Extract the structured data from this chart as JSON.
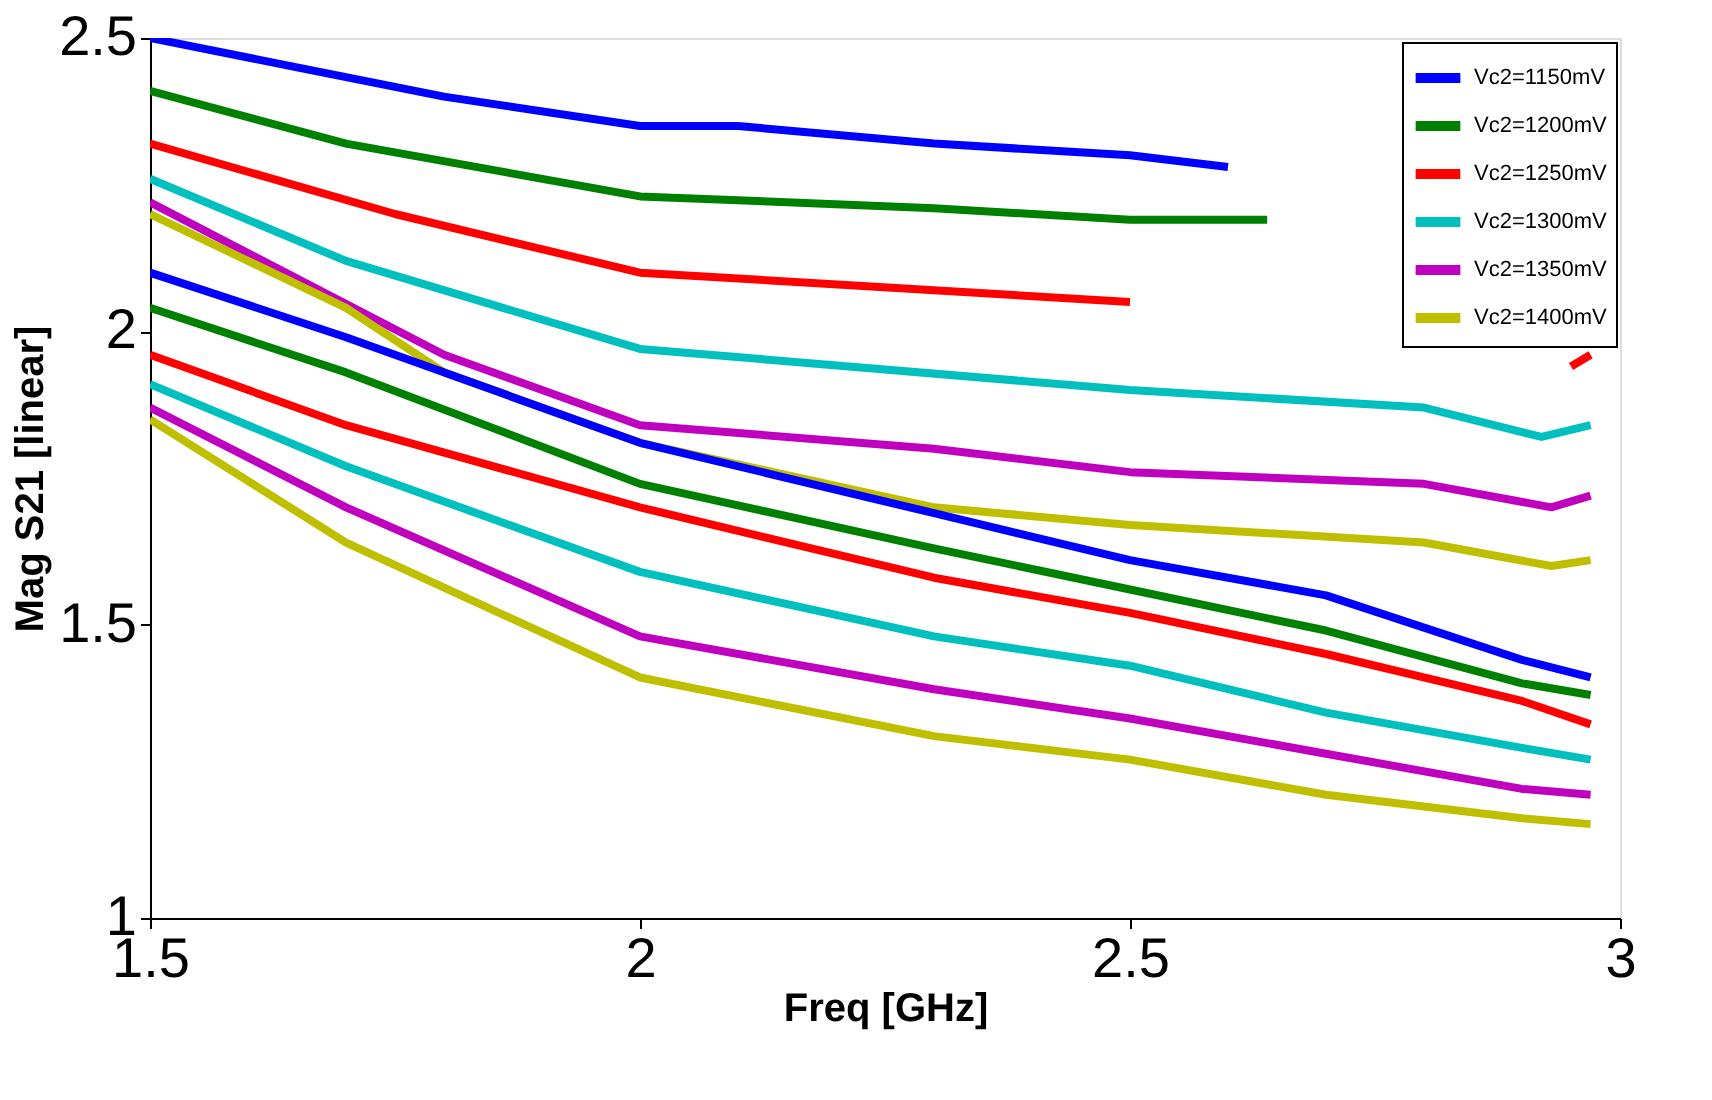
{
  "chart_data": {
    "type": "line",
    "xlabel": "Freq [GHz]",
    "ylabel": "Mag S21 [linear]",
    "xlim": [
      1.5,
      3
    ],
    "ylim": [
      1,
      2.5
    ],
    "xticks": [
      1.5,
      {
        "value": 2,
        "label": "2"
      },
      2.5,
      {
        "value": 3,
        "label": "3"
      }
    ],
    "yticks": [
      {
        "value": 1,
        "label": "1"
      },
      1.5,
      {
        "value": 2,
        "label": "2"
      },
      2.5
    ],
    "grid": false,
    "legend": "top right",
    "marker": "none",
    "line_style": "solid",
    "series": [
      {
        "name": "Vc2=1150mV",
        "color": "#0000ff",
        "x": [
          1.5,
          1.65,
          1.8,
          2.0,
          2.1,
          2.3,
          2.5,
          2.6
        ],
        "values": [
          2.5,
          2.45,
          2.4,
          2.35,
          2.35,
          2.32,
          2.3,
          2.28
        ]
      },
      {
        "name": "Vc2=1200mV",
        "color": "#008000",
        "x": [
          1.5,
          1.7,
          2.0,
          2.3,
          2.5,
          2.64
        ],
        "values": [
          2.41,
          2.32,
          2.23,
          2.21,
          2.19,
          2.19
        ]
      },
      {
        "name": "Vc2=1250mV",
        "color": "#ff0000",
        "x": [
          1.5,
          1.75,
          2.0,
          2.5,
          2.8,
          2.9,
          2.95,
          2.97
        ],
        "values": [
          2.32,
          2.2,
          2.1,
          2.05,
          null,
          null,
          1.94,
          1.96
        ]
      },
      {
        "name": "Vc2=1300mV",
        "color": "#00bfbf",
        "x": [
          1.5,
          1.7,
          2.0,
          2.5,
          2.8,
          2.92,
          2.97
        ],
        "values": [
          2.26,
          2.12,
          1.97,
          1.9,
          1.87,
          1.82,
          1.84
        ]
      },
      {
        "name": "Vc2=1350mV",
        "color": "#bf00bf",
        "x": [
          1.5,
          1.8,
          2.0,
          2.3,
          2.5,
          2.8,
          2.93,
          2.97
        ],
        "values": [
          2.22,
          1.96,
          1.84,
          1.8,
          1.76,
          1.74,
          1.7,
          1.72
        ]
      },
      {
        "name": "Vc2=1400mV",
        "color": "#bfbf00",
        "x": [
          1.5,
          1.7,
          1.8,
          2.0,
          2.3,
          2.5,
          2.8,
          2.93,
          2.97
        ],
        "values": [
          2.2,
          2.04,
          1.93,
          1.81,
          1.7,
          1.67,
          1.64,
          1.6,
          1.61
        ]
      },
      {
        "color": "#0000ff",
        "x": [
          1.5,
          1.7,
          2.0,
          2.3,
          2.5,
          2.7,
          2.9,
          2.97
        ],
        "values": [
          2.1,
          1.99,
          1.81,
          1.69,
          1.61,
          1.55,
          1.44,
          1.41
        ]
      },
      {
        "color": "#008000",
        "x": [
          1.5,
          1.7,
          2.0,
          2.3,
          2.5,
          2.7,
          2.9,
          2.97
        ],
        "values": [
          2.04,
          1.93,
          1.74,
          1.63,
          1.56,
          1.49,
          1.4,
          1.38
        ]
      },
      {
        "color": "#ff0000",
        "x": [
          1.5,
          1.7,
          2.0,
          2.3,
          2.5,
          2.7,
          2.9,
          2.97
        ],
        "values": [
          1.96,
          1.84,
          1.7,
          1.58,
          1.52,
          1.45,
          1.37,
          1.33
        ]
      },
      {
        "color": "#00bfbf",
        "x": [
          1.5,
          1.7,
          2.0,
          2.3,
          2.5,
          2.7,
          2.9,
          2.97
        ],
        "values": [
          1.91,
          1.77,
          1.59,
          1.48,
          1.43,
          1.35,
          1.29,
          1.27
        ]
      },
      {
        "color": "#bf00bf",
        "x": [
          1.5,
          1.7,
          2.0,
          2.3,
          2.5,
          2.7,
          2.9,
          2.97
        ],
        "values": [
          1.87,
          1.7,
          1.48,
          1.39,
          1.34,
          1.28,
          1.22,
          1.21
        ]
      },
      {
        "color": "#bfbf00",
        "x": [
          1.5,
          1.7,
          2.0,
          2.3,
          2.5,
          2.7,
          2.9,
          2.97
        ],
        "values": [
          1.85,
          1.64,
          1.41,
          1.31,
          1.27,
          1.21,
          1.17,
          1.16
        ]
      }
    ]
  }
}
